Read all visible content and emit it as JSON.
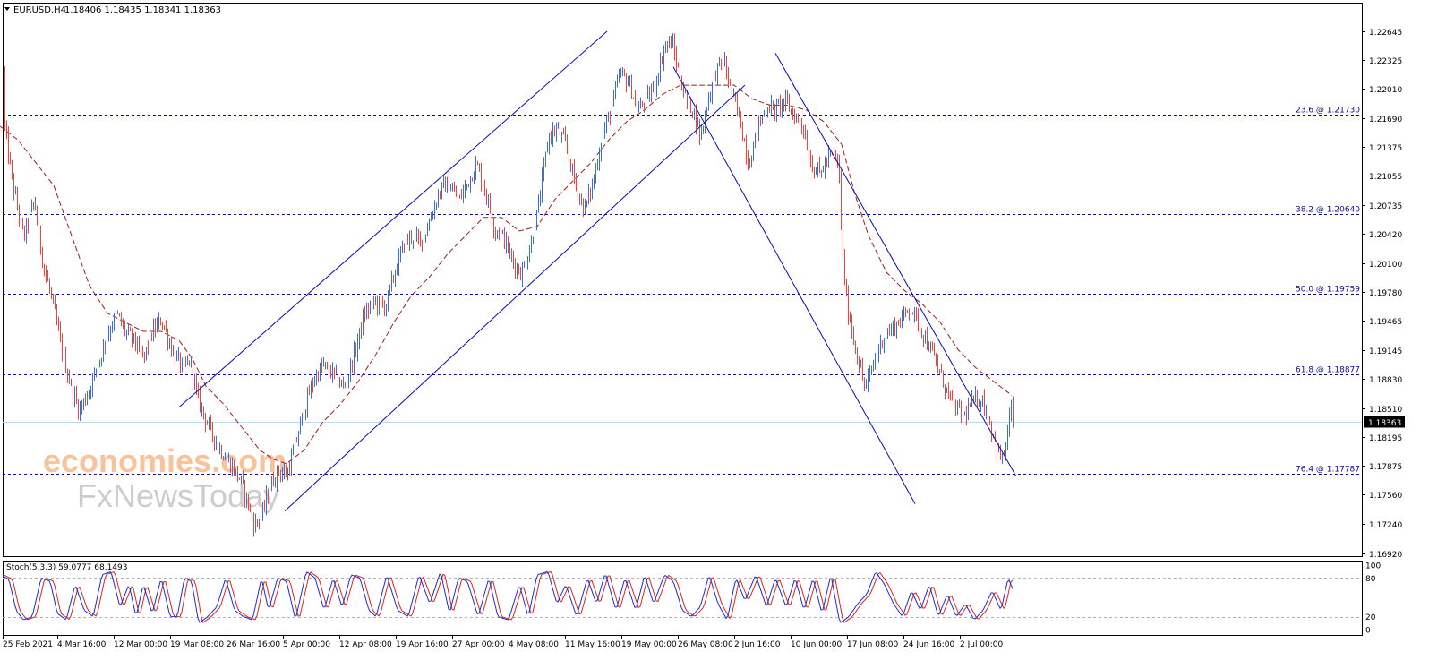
{
  "header": {
    "symbol_text": "EURUSD,H4",
    "ohlc_text": "1.18406 1.18435 1.18341 1.18363",
    "menu_icon": "triangle-down-icon"
  },
  "indicator": {
    "label": "Stoch(5,3,3) 59.0777 68.1493",
    "levels": [
      80,
      20
    ],
    "scale_labels": [
      "100",
      "80",
      "20",
      "0"
    ]
  },
  "watermark": {
    "line1": "economies.com",
    "line2": "FxNewsToday"
  },
  "colors": {
    "bull_candle": "#3a6fd8",
    "bear_candle": "#e8473f",
    "moving_average": "#a01c1c",
    "channel_lines": "#0a0ab4",
    "fib_lines": "#0a0a8c",
    "current_price_line": "#b9dcec",
    "stoch_main": "#1a2bd6",
    "stoch_signal": "#e02020",
    "watermark_orange": "#f4b98a",
    "watermark_gray": "#c8c8c8"
  },
  "chart_data": {
    "type": "candlestick",
    "symbol": "EURUSD",
    "timeframe": "H4",
    "ylim": [
      1.1692,
      1.2264
    ],
    "y_ticks": [
      "1.22645",
      "1.22325",
      "1.22010",
      "1.21690",
      "1.21375",
      "1.21055",
      "1.20735",
      "1.20420",
      "1.20100",
      "1.19780",
      "1.19465",
      "1.19145",
      "1.18830",
      "1.18510",
      "1.18195",
      "1.17875",
      "1.17560",
      "1.17240",
      "1.16920"
    ],
    "x_ticks": [
      "25 Feb 2021",
      "4 Mar 16:00",
      "12 Mar 00:00",
      "19 Mar 08:00",
      "26 Mar 16:00",
      "5 Apr 00:00",
      "12 Apr 08:00",
      "19 Apr 16:00",
      "27 Apr 00:00",
      "4 May 08:00",
      "11 May 16:00",
      "19 May 00:00",
      "26 May 08:00",
      "2 Jun 16:00",
      "10 Jun 00:00",
      "17 Jun 08:00",
      "24 Jun 16:00",
      "2 Jul 00:00"
    ],
    "current_price": 1.18363,
    "current_price_label": "1.18363",
    "fibonacci_levels": [
      {
        "label": "23.6 @ 1.21730",
        "value": 1.2173
      },
      {
        "label": "38.2 @ 1.20640",
        "value": 1.2064
      },
      {
        "label": "50.0 @ 1.19759",
        "value": 1.19759
      },
      {
        "label": "61.8 @ 1.18877",
        "value": 1.18877
      },
      {
        "label": "76.4 @ 1.17787",
        "value": 1.17787
      }
    ],
    "price_path": [
      [
        0,
        1.2223
      ],
      [
        4,
        1.2165
      ],
      [
        14,
        1.2095
      ],
      [
        26,
        1.2038
      ],
      [
        38,
        1.2078
      ],
      [
        48,
        1.2008
      ],
      [
        58,
        1.1968
      ],
      [
        70,
        1.1908
      ],
      [
        80,
        1.1871
      ],
      [
        88,
        1.1848
      ],
      [
        98,
        1.1868
      ],
      [
        110,
        1.1902
      ],
      [
        122,
        1.1938
      ],
      [
        130,
        1.1954
      ],
      [
        140,
        1.1934
      ],
      [
        152,
        1.1922
      ],
      [
        160,
        1.1905
      ],
      [
        170,
        1.1934
      ],
      [
        180,
        1.1948
      ],
      [
        192,
        1.1914
      ],
      [
        204,
        1.1894
      ],
      [
        212,
        1.1903
      ],
      [
        220,
        1.1863
      ],
      [
        232,
        1.1832
      ],
      [
        244,
        1.1808
      ],
      [
        256,
        1.1791
      ],
      [
        268,
        1.1772
      ],
      [
        276,
        1.1748
      ],
      [
        284,
        1.1722
      ],
      [
        292,
        1.1732
      ],
      [
        300,
        1.1762
      ],
      [
        310,
        1.1782
      ],
      [
        320,
        1.1778
      ],
      [
        330,
        1.1812
      ],
      [
        340,
        1.1852
      ],
      [
        350,
        1.1882
      ],
      [
        360,
        1.1898
      ],
      [
        372,
        1.1888
      ],
      [
        384,
        1.1873
      ],
      [
        396,
        1.1912
      ],
      [
        406,
        1.1952
      ],
      [
        416,
        1.1968
      ],
      [
        430,
        1.1962
      ],
      [
        440,
        1.1998
      ],
      [
        450,
        1.2028
      ],
      [
        460,
        1.204
      ],
      [
        470,
        1.2032
      ],
      [
        480,
        1.2058
      ],
      [
        490,
        1.2088
      ],
      [
        500,
        1.2098
      ],
      [
        512,
        1.2078
      ],
      [
        522,
        1.2098
      ],
      [
        532,
        1.2118
      ],
      [
        542,
        1.2088
      ],
      [
        552,
        1.2048
      ],
      [
        562,
        1.2038
      ],
      [
        572,
        1.2012
      ],
      [
        582,
        1.1998
      ],
      [
        592,
        1.2028
      ],
      [
        602,
        1.2078
      ],
      [
        612,
        1.2148
      ],
      [
        622,
        1.2158
      ],
      [
        632,
        1.2138
      ],
      [
        642,
        1.2098
      ],
      [
        652,
        1.2068
      ],
      [
        662,
        1.2098
      ],
      [
        672,
        1.2148
      ],
      [
        682,
        1.2178
      ],
      [
        692,
        1.2218
      ],
      [
        702,
        1.2208
      ],
      [
        712,
        1.2178
      ],
      [
        722,
        1.2188
      ],
      [
        732,
        1.2208
      ],
      [
        742,
        1.2248
      ],
      [
        750,
        1.2252
      ],
      [
        758,
        1.2218
      ],
      [
        766,
        1.2188
      ],
      [
        774,
        1.2178
      ],
      [
        782,
        1.2148
      ],
      [
        790,
        1.2188
      ],
      [
        800,
        1.2222
      ],
      [
        808,
        1.2232
      ],
      [
        816,
        1.2198
      ],
      [
        826,
        1.2168
      ],
      [
        836,
        1.2118
      ],
      [
        846,
        1.2158
      ],
      [
        856,
        1.2182
      ],
      [
        866,
        1.2178
      ],
      [
        876,
        1.2188
      ],
      [
        886,
        1.2172
      ],
      [
        896,
        1.2162
      ],
      [
        906,
        1.2118
      ],
      [
        916,
        1.2108
      ],
      [
        926,
        1.2128
      ],
      [
        936,
        1.2122
      ],
      [
        941,
        1.2012
      ],
      [
        946,
        1.1962
      ],
      [
        956,
        1.1912
      ],
      [
        966,
        1.1872
      ],
      [
        976,
        1.1902
      ],
      [
        986,
        1.1928
      ],
      [
        996,
        1.1938
      ],
      [
        1006,
        1.1948
      ],
      [
        1016,
        1.1962
      ],
      [
        1026,
        1.1942
      ],
      [
        1036,
        1.1922
      ],
      [
        1046,
        1.1898
      ],
      [
        1056,
        1.1872
      ],
      [
        1066,
        1.1852
      ],
      [
        1076,
        1.1842
      ],
      [
        1086,
        1.1858
      ],
      [
        1096,
        1.1862
      ],
      [
        1104,
        1.1838
      ],
      [
        1112,
        1.1812
      ],
      [
        1118,
        1.1792
      ],
      [
        1124,
        1.1812
      ],
      [
        1128,
        1.1852
      ],
      [
        1132,
        1.1836
      ]
    ],
    "moving_average_path": [
      [
        0,
        1.216
      ],
      [
        20,
        1.2145
      ],
      [
        40,
        1.212
      ],
      [
        60,
        1.2095
      ],
      [
        80,
        1.204
      ],
      [
        100,
        1.1985
      ],
      [
        120,
        1.1955
      ],
      [
        140,
        1.1945
      ],
      [
        160,
        1.1935
      ],
      [
        180,
        1.1935
      ],
      [
        200,
        1.1925
      ],
      [
        215,
        1.1905
      ],
      [
        230,
        1.1875
      ],
      [
        250,
        1.1855
      ],
      [
        270,
        1.183
      ],
      [
        290,
        1.1805
      ],
      [
        305,
        1.1795
      ],
      [
        320,
        1.179
      ],
      [
        340,
        1.1805
      ],
      [
        360,
        1.1835
      ],
      [
        380,
        1.1855
      ],
      [
        400,
        1.188
      ],
      [
        420,
        1.191
      ],
      [
        440,
        1.1945
      ],
      [
        460,
        1.1975
      ],
      [
        480,
        1.1995
      ],
      [
        500,
        1.202
      ],
      [
        520,
        1.204
      ],
      [
        540,
        1.206
      ],
      [
        560,
        1.206
      ],
      [
        580,
        1.2045
      ],
      [
        600,
        1.205
      ],
      [
        620,
        1.208
      ],
      [
        640,
        1.21
      ],
      [
        660,
        1.212
      ],
      [
        680,
        1.2145
      ],
      [
        700,
        1.2165
      ],
      [
        720,
        1.2178
      ],
      [
        740,
        1.2195
      ],
      [
        760,
        1.2205
      ],
      [
        780,
        1.2205
      ],
      [
        800,
        1.2205
      ],
      [
        820,
        1.2205
      ],
      [
        840,
        1.219
      ],
      [
        860,
        1.2183
      ],
      [
        880,
        1.2183
      ],
      [
        900,
        1.2178
      ],
      [
        920,
        1.2165
      ],
      [
        940,
        1.214
      ],
      [
        955,
        1.2085
      ],
      [
        970,
        1.204
      ],
      [
        990,
        1.2
      ],
      [
        1010,
        1.198
      ],
      [
        1030,
        1.1965
      ],
      [
        1050,
        1.1945
      ],
      [
        1070,
        1.1915
      ],
      [
        1090,
        1.1895
      ],
      [
        1110,
        1.188
      ],
      [
        1130,
        1.1865
      ]
    ],
    "trend_lines": [
      {
        "name": "channel-upper",
        "points": [
          [
            200,
            1.1852
          ],
          [
            678,
            1.2264
          ]
        ]
      },
      {
        "name": "channel-lower",
        "points": [
          [
            318,
            1.1738
          ],
          [
            832,
            1.2205
          ]
        ]
      },
      {
        "name": "falling-line-outer",
        "points": [
          [
            752,
            1.2225
          ],
          [
            1022,
            1.1746
          ]
        ]
      },
      {
        "name": "falling-line-inner",
        "points": [
          [
            866,
            1.224
          ],
          [
            1135,
            1.1776
          ]
        ]
      }
    ],
    "stochastic": {
      "ylim": [
        0,
        100
      ],
      "main_path": [
        [
          0,
          85
        ],
        [
          10,
          78
        ],
        [
          18,
          30
        ],
        [
          26,
          15
        ],
        [
          36,
          20
        ],
        [
          46,
          80
        ],
        [
          56,
          75
        ],
        [
          64,
          25
        ],
        [
          74,
          15
        ],
        [
          84,
          70
        ],
        [
          94,
          30
        ],
        [
          104,
          20
        ],
        [
          114,
          85
        ],
        [
          124,
          90
        ],
        [
          134,
          35
        ],
        [
          144,
          70
        ],
        [
          152,
          20
        ],
        [
          160,
          70
        ],
        [
          170,
          25
        ],
        [
          180,
          80
        ],
        [
          190,
          20
        ],
        [
          198,
          20
        ],
        [
          206,
          80
        ],
        [
          214,
          75
        ],
        [
          222,
          10
        ],
        [
          232,
          20
        ],
        [
          242,
          35
        ],
        [
          252,
          80
        ],
        [
          262,
          30
        ],
        [
          272,
          20
        ],
        [
          282,
          15
        ],
        [
          292,
          80
        ],
        [
          300,
          30
        ],
        [
          310,
          80
        ],
        [
          320,
          75
        ],
        [
          330,
          15
        ],
        [
          342,
          90
        ],
        [
          352,
          80
        ],
        [
          362,
          30
        ],
        [
          372,
          80
        ],
        [
          382,
          35
        ],
        [
          392,
          85
        ],
        [
          402,
          80
        ],
        [
          412,
          30
        ],
        [
          420,
          20
        ],
        [
          432,
          85
        ],
        [
          444,
          30
        ],
        [
          456,
          20
        ],
        [
          468,
          85
        ],
        [
          480,
          40
        ],
        [
          492,
          90
        ],
        [
          502,
          25
        ],
        [
          512,
          80
        ],
        [
          522,
          75
        ],
        [
          534,
          20
        ],
        [
          546,
          80
        ],
        [
          556,
          20
        ],
        [
          568,
          15
        ],
        [
          580,
          70
        ],
        [
          590,
          20
        ],
        [
          600,
          85
        ],
        [
          612,
          90
        ],
        [
          622,
          40
        ],
        [
          632,
          70
        ],
        [
          644,
          20
        ],
        [
          656,
          80
        ],
        [
          666,
          40
        ],
        [
          676,
          88
        ],
        [
          688,
          30
        ],
        [
          698,
          80
        ],
        [
          710,
          30
        ],
        [
          720,
          85
        ],
        [
          730,
          40
        ],
        [
          742,
          85
        ],
        [
          752,
          75
        ],
        [
          762,
          30
        ],
        [
          772,
          20
        ],
        [
          782,
          35
        ],
        [
          792,
          85
        ],
        [
          802,
          40
        ],
        [
          812,
          15
        ],
        [
          822,
          80
        ],
        [
          832,
          45
        ],
        [
          844,
          85
        ],
        [
          856,
          35
        ],
        [
          866,
          80
        ],
        [
          878,
          35
        ],
        [
          888,
          80
        ],
        [
          898,
          30
        ],
        [
          908,
          80
        ],
        [
          918,
          25
        ],
        [
          928,
          85
        ],
        [
          938,
          10
        ],
        [
          948,
          20
        ],
        [
          958,
          40
        ],
        [
          968,
          55
        ],
        [
          978,
          90
        ],
        [
          988,
          70
        ],
        [
          998,
          40
        ],
        [
          1008,
          20
        ],
        [
          1018,
          60
        ],
        [
          1028,
          30
        ],
        [
          1038,
          70
        ],
        [
          1048,
          20
        ],
        [
          1058,
          55
        ],
        [
          1068,
          20
        ],
        [
          1078,
          40
        ],
        [
          1088,
          15
        ],
        [
          1098,
          30
        ],
        [
          1108,
          60
        ],
        [
          1118,
          30
        ],
        [
          1126,
          80
        ],
        [
          1132,
          60
        ]
      ]
    }
  }
}
